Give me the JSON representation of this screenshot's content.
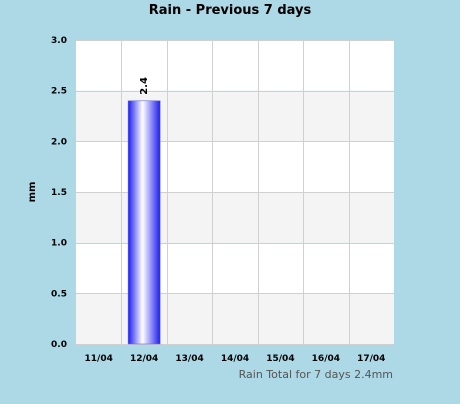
{
  "chart_data": {
    "type": "bar",
    "title": "Rain - Previous 7 days",
    "ylabel": "mm",
    "xlabel": "",
    "categories": [
      "11/04",
      "12/04",
      "13/04",
      "14/04",
      "15/04",
      "16/04",
      "17/04"
    ],
    "values": [
      0,
      2.4,
      0,
      0,
      0,
      0,
      0
    ],
    "data_labels": [
      "",
      "2.4",
      "",
      "",
      "",
      "",
      ""
    ],
    "ylim": [
      0,
      3.0
    ],
    "yticks": [
      "0.0",
      "0.5",
      "1.0",
      "1.5",
      "2.0",
      "2.5",
      "3.0"
    ],
    "grid": true,
    "legend": "none",
    "colors": {
      "page_background": "#add8e6",
      "band_light": "#f4f4f4",
      "band_white": "#ffffff",
      "grid_line": "#d0d0d0",
      "bar_light": "#ffffff",
      "bar_dark": "#1c1cf0"
    }
  },
  "footer": {
    "total_text": "Rain Total for 7 days 2.4mm"
  }
}
